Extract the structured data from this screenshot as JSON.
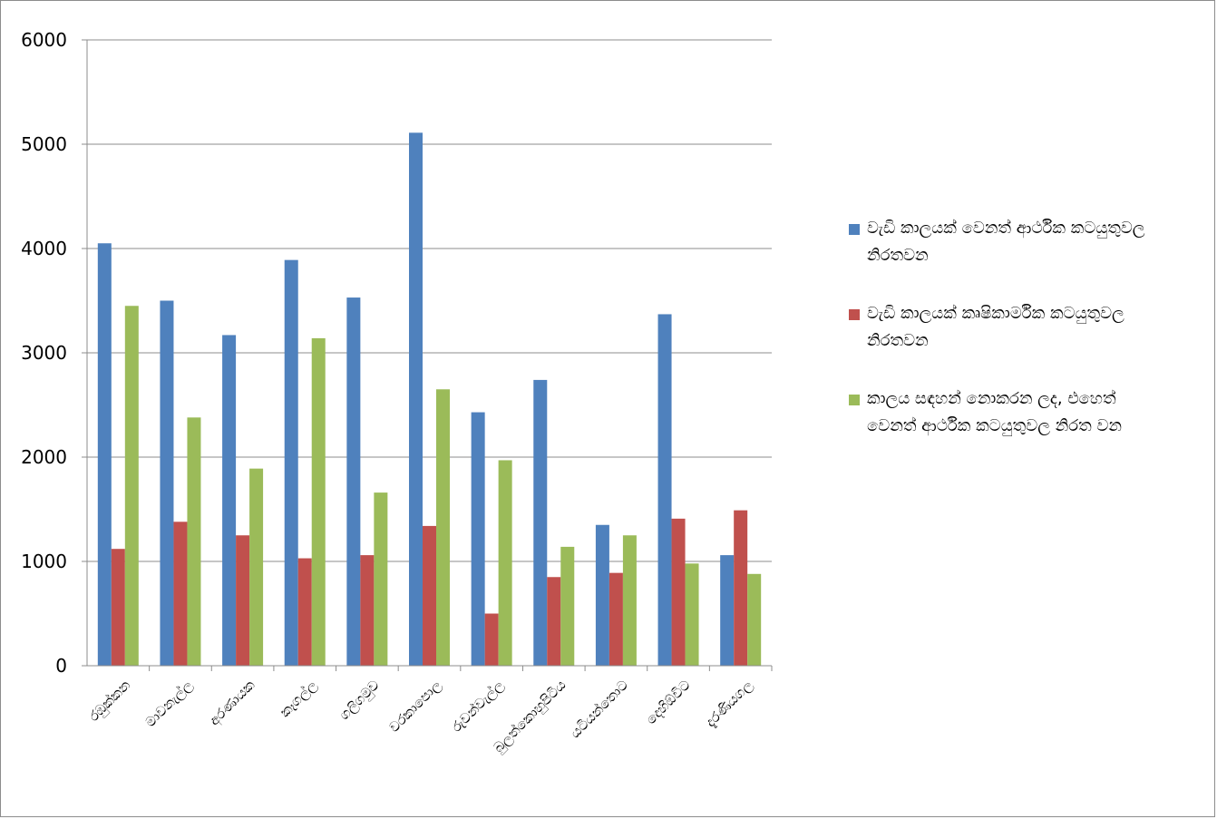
{
  "chart_data": {
    "type": "bar",
    "categories": [
      "රඹුක්කන",
      "මාවනැල්ල",
      "අරණායක",
      "කෑගල්ල",
      "ගලිගමුව",
      "වරකාපොල",
      "රුවන්වැල්ල",
      "බුලත්කොහුපිටිය",
      "යටියන්තොට",
      "දෙහිඕවිට",
      "දැරණියගල"
    ],
    "series": [
      {
        "name": "වැඩි කාලයක් වෙනත් ආර්ථික කටයුතුවල නිරතවන",
        "color": "#4f81bd",
        "values": [
          4050,
          3500,
          3170,
          3890,
          3530,
          5110,
          2430,
          2740,
          1350,
          3370,
          1060
        ]
      },
      {
        "name": "වැඩි කාලයක් කෘෂිකාර්මික කටයුතුවල නිරතවන",
        "color": "#c0504d",
        "values": [
          1120,
          1380,
          1250,
          1030,
          1060,
          1340,
          500,
          850,
          890,
          1410,
          1490
        ]
      },
      {
        "name": "කාලය සඳහන් නොකරන ලද, එහෙත් වෙනත් ආර්ථික කටයුතුවල නිරත වන",
        "color": "#9bbb59",
        "values": [
          3450,
          2380,
          1890,
          3140,
          1660,
          2650,
          1970,
          1140,
          1250,
          980,
          880
        ]
      }
    ],
    "y_ticks": [
      "0",
      "1000",
      "2000",
      "3000",
      "4000",
      "5000",
      "6000"
    ],
    "ylim": [
      0,
      6000
    ],
    "grid": true,
    "legend_position": "right"
  }
}
